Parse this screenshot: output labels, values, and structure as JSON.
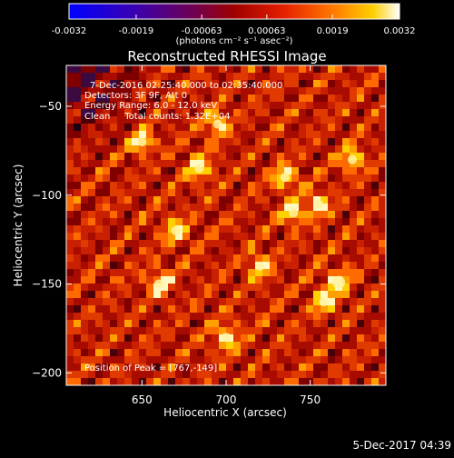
{
  "chart_data": {
    "type": "heatmap",
    "title": "Reconstructed RHESSI Image",
    "xlabel": "Heliocentric X (arcsec)",
    "ylabel": "Heliocentric Y (arcsec)",
    "xlim": [
      605,
      795
    ],
    "ylim": [
      -207,
      -27
    ],
    "x_ticks": [
      650,
      700,
      750
    ],
    "y_ticks": [
      -50,
      -100,
      -150,
      -200
    ],
    "colorbar": {
      "range": [
        -0.0032,
        0.0032
      ],
      "ticks": [
        -0.0032,
        -0.0019,
        -0.00063,
        0.00063,
        0.0019,
        0.0032
      ],
      "tick_labels": [
        "-0.0032",
        "-0.0019",
        "-0.00063",
        "0.00063",
        "0.0019",
        "0.0032"
      ],
      "units_line": "(photons cm⁻² s⁻¹ asec⁻²)"
    },
    "annotations": [
      "7-Dec-2016 02:25:40.000 to 02:35:40.000",
      "Detectors: 3F 9F, Att 0",
      "Energy Range: 6.0 - 12.0 keV",
      "Clean     Total counts: 1.32E+04"
    ],
    "peak_label": "Position of Peak = [767,-149]",
    "peak": [
      767,
      -149
    ],
    "timestamp": "5-Dec-2017 04:39",
    "bright_sources": [
      {
        "x": 767,
        "y": -149
      },
      {
        "x": 684,
        "y": -85
      },
      {
        "x": 695,
        "y": -60
      },
      {
        "x": 735,
        "y": -90
      },
      {
        "x": 755,
        "y": -105
      },
      {
        "x": 740,
        "y": -110
      },
      {
        "x": 670,
        "y": -120
      },
      {
        "x": 758,
        "y": -160
      },
      {
        "x": 720,
        "y": -140
      },
      {
        "x": 700,
        "y": -180
      },
      {
        "x": 775,
        "y": -80
      },
      {
        "x": 650,
        "y": -70
      },
      {
        "x": 660,
        "y": -150
      }
    ]
  }
}
